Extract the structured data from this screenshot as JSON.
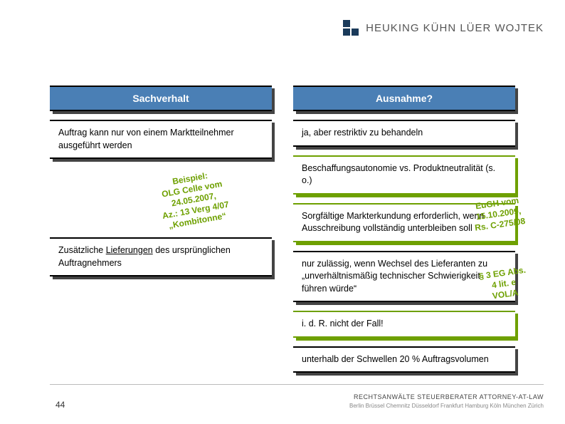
{
  "logo": {
    "brand": "HEUKING KÜHN LÜER WOJTEK"
  },
  "headers": {
    "left": "Sachverhalt",
    "right": "Ausnahme?"
  },
  "left": {
    "box1": "Auftrag kann nur von einem Marktteilnehmer ausgeführt werden",
    "box2_a": "Zusätzliche ",
    "box2_u": "Lieferungen",
    "box2_b": " des ursprünglichen Auftragnehmers"
  },
  "right": {
    "r1": "ja, aber restriktiv zu behandeln",
    "r2": "Beschaffungsautonomie vs. Produktneutralität (s. o.)",
    "r3": "Sorgfältige Markterkundung erforderlich, wenn Ausschreibung vollständig unterbleiben soll",
    "r4": "nur zulässig, wenn Wechsel des Lieferanten zu „unverhältnismäßig technischer Schwierigkeit führen würde“",
    "r5": "i. d. R. nicht der Fall!",
    "r6": "unterhalb der Schwellen 20 % Auftragsvolumen"
  },
  "notes": {
    "beispiel": "Beispiel:\nOLG Celle vom\n24.05.2007,\nAz.: 13 Verg 4/07\n„Kombitonne“",
    "eugh": "EuGH vom\n15.10.2009,\nRs. C-275/08",
    "eg": "§ 3 EG Abs.\n4 lit. e\nVOL/A"
  },
  "footer": {
    "roles": "RECHTSANWÄLTE  STEUERBERATER  ATTORNEY-AT-LAW",
    "cities": "Berlin Brüssel Chemnitz Düsseldorf Frankfurt Hamburg Köln München Zürich"
  },
  "page": "44",
  "colors": {
    "header_bg": "#4a7fb5",
    "green": "#6ea000",
    "shadow": "#444444",
    "text": "#000000"
  }
}
